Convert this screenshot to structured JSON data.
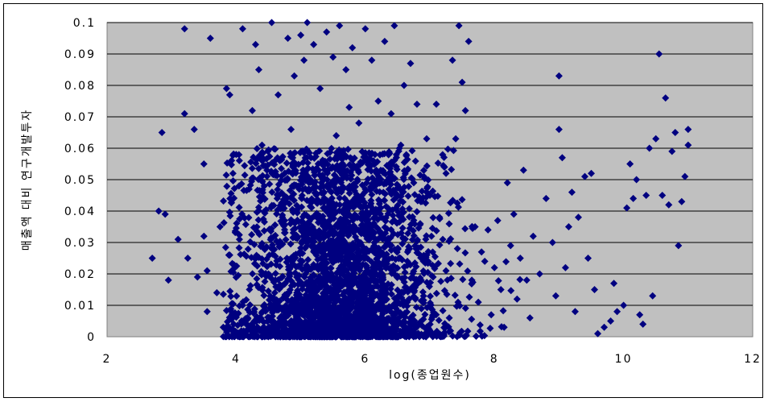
{
  "chart_data": {
    "type": "scatter",
    "xlabel": "log(종업원수)",
    "ylabel": "매출액 대비 연구개발투자",
    "xlim": [
      2,
      12
    ],
    "ylim": [
      0,
      0.1
    ],
    "x_ticks": [
      "2",
      "4",
      "6",
      "8",
      "10",
      "12"
    ],
    "y_ticks": [
      "0",
      "0.01",
      "0.02",
      "0.03",
      "0.04",
      "0.05",
      "0.06",
      "0.07",
      "0.08",
      "0.09",
      "0.1"
    ],
    "grid": "horizontal",
    "legend": "none",
    "plot_background": "#c0c0c0",
    "marker_color": "#000080",
    "marker": "diamond",
    "series": [
      {
        "points": [
          [
            2.7,
            0.025
          ],
          [
            2.8,
            0.04
          ],
          [
            2.85,
            0.065
          ],
          [
            2.9,
            0.039
          ],
          [
            2.95,
            0.018
          ],
          [
            3.1,
            0.031
          ],
          [
            3.2,
            0.071
          ],
          [
            3.25,
            0.025
          ],
          [
            3.2,
            0.098
          ],
          [
            3.35,
            0.066
          ],
          [
            3.4,
            0.019
          ],
          [
            3.5,
            0.055
          ],
          [
            3.5,
            0.032
          ],
          [
            3.55,
            0.008
          ],
          [
            3.6,
            0.095
          ],
          [
            3.55,
            0.021
          ],
          [
            3.7,
            0.014
          ],
          [
            3.75,
            0.035
          ],
          [
            3.8,
            0.003
          ],
          [
            3.85,
            0.079
          ],
          [
            3.9,
            0.026
          ],
          [
            3.9,
            0.077
          ],
          [
            3.95,
            0.052
          ],
          [
            4.0,
            0.058
          ],
          [
            4.05,
            0.031
          ],
          [
            4.1,
            0.01
          ],
          [
            4.1,
            0.098
          ],
          [
            4.2,
            0.047
          ],
          [
            4.25,
            0.072
          ],
          [
            4.3,
            0.093
          ],
          [
            4.35,
            0.085
          ],
          [
            4.4,
            0.061
          ],
          [
            4.5,
            0.02
          ],
          [
            4.55,
            0.1
          ],
          [
            4.6,
            0.056
          ],
          [
            4.65,
            0.077
          ],
          [
            4.7,
            0.009
          ],
          [
            4.75,
            0.037
          ],
          [
            4.8,
            0.095
          ],
          [
            4.85,
            0.066
          ],
          [
            4.9,
            0.083
          ],
          [
            4.95,
            0.012
          ],
          [
            5.0,
            0.096
          ],
          [
            5.05,
            0.088
          ],
          [
            5.1,
            0.1
          ],
          [
            5.15,
            0.05
          ],
          [
            5.2,
            0.093
          ],
          [
            5.25,
            0.027
          ],
          [
            5.3,
            0.079
          ],
          [
            5.35,
            0.041
          ],
          [
            5.4,
            0.097
          ],
          [
            5.45,
            0.015
          ],
          [
            5.5,
            0.089
          ],
          [
            5.55,
            0.064
          ],
          [
            5.6,
            0.099
          ],
          [
            5.65,
            0.031
          ],
          [
            5.7,
            0.085
          ],
          [
            5.75,
            0.073
          ],
          [
            5.8,
            0.092
          ],
          [
            5.85,
            0.022
          ],
          [
            5.9,
            0.068
          ],
          [
            5.95,
            0.045
          ],
          [
            6.0,
            0.098
          ],
          [
            6.05,
            0.033
          ],
          [
            6.1,
            0.088
          ],
          [
            6.15,
            0.058
          ],
          [
            6.2,
            0.075
          ],
          [
            6.25,
            0.016
          ],
          [
            6.3,
            0.094
          ],
          [
            6.35,
            0.041
          ],
          [
            6.4,
            0.071
          ],
          [
            6.45,
            0.099
          ],
          [
            6.5,
            0.028
          ],
          [
            6.55,
            0.061
          ],
          [
            6.6,
            0.08
          ],
          [
            6.65,
            0.011
          ],
          [
            6.7,
            0.087
          ],
          [
            6.75,
            0.049
          ],
          [
            6.8,
            0.074
          ],
          [
            6.85,
            0.036
          ],
          [
            6.9,
            0.024
          ],
          [
            6.95,
            0.063
          ],
          [
            7.0,
            0.045
          ],
          [
            7.05,
            0.019
          ],
          [
            7.1,
            0.074
          ],
          [
            7.15,
            0.038
          ],
          [
            7.2,
            0.031
          ],
          [
            7.25,
            0.052
          ],
          [
            7.3,
            0.006
          ],
          [
            7.35,
            0.088
          ],
          [
            7.4,
            0.063
          ],
          [
            7.45,
            0.099
          ],
          [
            7.5,
            0.081
          ],
          [
            7.55,
            0.072
          ],
          [
            7.6,
            0.094
          ],
          [
            7.65,
            0.018
          ],
          [
            7.7,
            0.035
          ],
          [
            7.75,
            0.011
          ],
          [
            7.8,
            0.027
          ],
          [
            7.85,
            0.024
          ],
          [
            7.9,
            0.034
          ],
          [
            7.95,
            0.007
          ],
          [
            8.0,
            0.022
          ],
          [
            8.05,
            0.037
          ],
          [
            8.1,
            0.015
          ],
          [
            8.15,
            0.003
          ],
          [
            8.2,
            0.049
          ],
          [
            8.25,
            0.029
          ],
          [
            8.3,
            0.039
          ],
          [
            8.35,
            0.012
          ],
          [
            8.4,
            0.025
          ],
          [
            8.45,
            0.053
          ],
          [
            8.5,
            0.018
          ],
          [
            8.55,
            0.006
          ],
          [
            8.6,
            0.032
          ],
          [
            8.7,
            0.02
          ],
          [
            8.8,
            0.044
          ],
          [
            8.9,
            0.03
          ],
          [
            8.95,
            0.013
          ],
          [
            9.0,
            0.083
          ],
          [
            9.0,
            0.066
          ],
          [
            9.05,
            0.057
          ],
          [
            9.1,
            0.022
          ],
          [
            9.15,
            0.035
          ],
          [
            9.2,
            0.046
          ],
          [
            9.25,
            0.008
          ],
          [
            9.3,
            0.038
          ],
          [
            9.4,
            0.051
          ],
          [
            9.45,
            0.025
          ],
          [
            9.5,
            0.052
          ],
          [
            9.55,
            0.015
          ],
          [
            9.6,
            0.001
          ],
          [
            9.7,
            0.003
          ],
          [
            9.8,
            0.005
          ],
          [
            9.85,
            0.017
          ],
          [
            9.9,
            0.008
          ],
          [
            10.0,
            0.01
          ],
          [
            10.05,
            0.041
          ],
          [
            10.1,
            0.055
          ],
          [
            10.15,
            0.044
          ],
          [
            10.2,
            0.05
          ],
          [
            10.25,
            0.007
          ],
          [
            10.3,
            0.004
          ],
          [
            10.35,
            0.045
          ],
          [
            10.4,
            0.06
          ],
          [
            10.45,
            0.013
          ],
          [
            10.5,
            0.063
          ],
          [
            10.55,
            0.09
          ],
          [
            10.6,
            0.045
          ],
          [
            10.65,
            0.076
          ],
          [
            10.7,
            0.042
          ],
          [
            10.75,
            0.059
          ],
          [
            10.8,
            0.065
          ],
          [
            10.85,
            0.029
          ],
          [
            10.9,
            0.043
          ],
          [
            10.95,
            0.051
          ],
          [
            11.0,
            0.066
          ],
          [
            11.0,
            0.061
          ]
        ],
        "cluster": {
          "note": "dense cluster near bottom",
          "x_center": 5.6,
          "x_spread": 1.3,
          "y_max": 0.06,
          "count": 3200
        }
      }
    ]
  }
}
